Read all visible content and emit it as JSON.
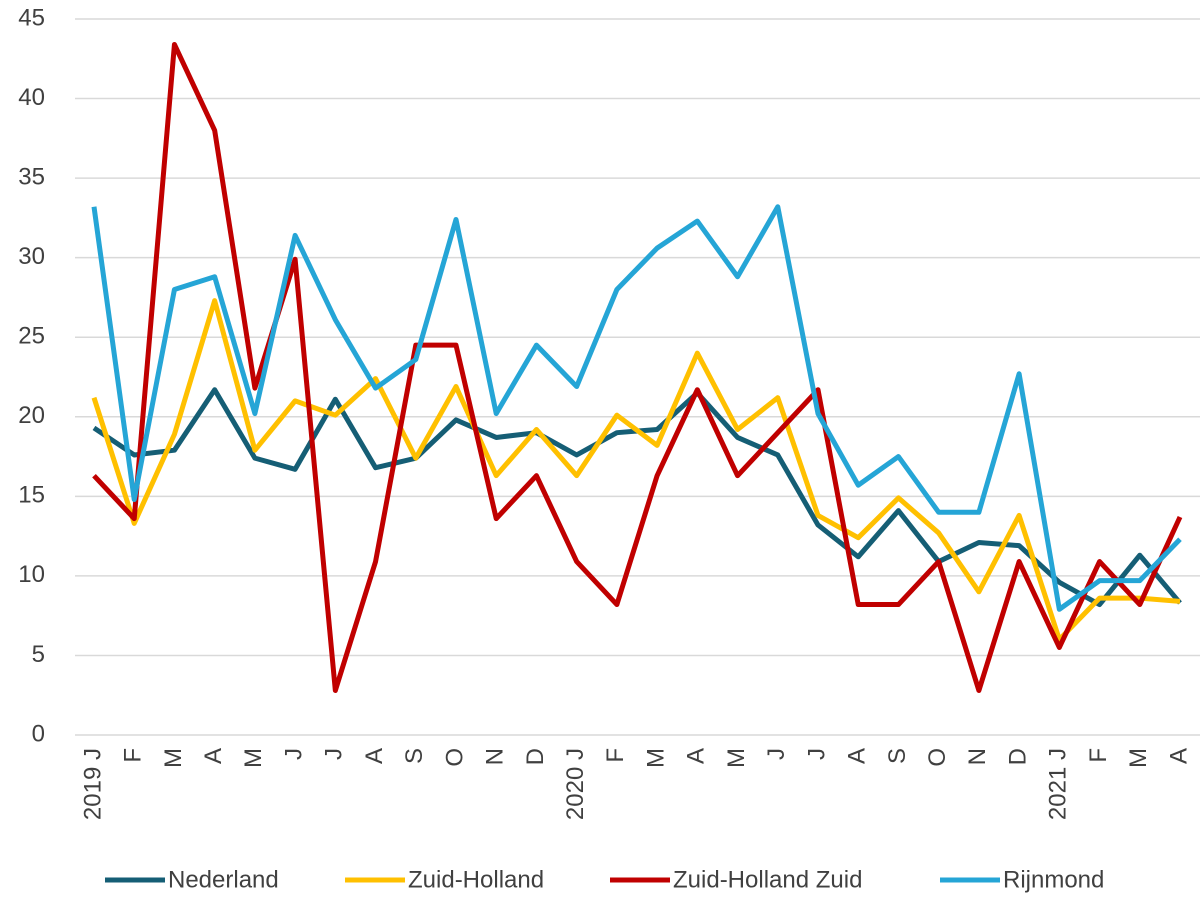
{
  "chart_data": {
    "type": "line",
    "categories": [
      "2019 J",
      "F",
      "M",
      "A",
      "M",
      "J",
      "J",
      "A",
      "S",
      "O",
      "N",
      "D",
      "2020 J",
      "F",
      "M",
      "A",
      "M",
      "J",
      "J",
      "A",
      "S",
      "O",
      "N",
      "D",
      "2021 J",
      "F",
      "M",
      "A"
    ],
    "series": [
      {
        "name": "Nederland",
        "color": "#155e75",
        "values": [
          19.3,
          17.6,
          17.9,
          21.7,
          17.4,
          16.7,
          21.1,
          16.8,
          17.4,
          19.8,
          18.7,
          19.0,
          17.6,
          19.0,
          19.2,
          21.5,
          18.7,
          17.6,
          13.2,
          11.2,
          14.1,
          10.9,
          12.1,
          11.9,
          9.6,
          8.2,
          11.3,
          8.3
        ]
      },
      {
        "name": "Zuid-Holland",
        "color": "#ffc000",
        "values": [
          21.2,
          13.3,
          18.9,
          27.3,
          17.9,
          21.0,
          20.1,
          22.4,
          17.4,
          21.9,
          16.3,
          19.2,
          16.3,
          20.1,
          18.2,
          24.0,
          19.2,
          21.2,
          13.8,
          12.4,
          14.9,
          12.7,
          9.0,
          13.8,
          6.0,
          8.6,
          8.6,
          8.4
        ]
      },
      {
        "name": "Zuid-Holland Zuid",
        "color": "#c00000",
        "values": [
          16.3,
          13.6,
          43.4,
          38.0,
          21.8,
          29.9,
          2.8,
          10.9,
          24.5,
          24.5,
          13.6,
          16.3,
          10.9,
          8.2,
          16.3,
          21.7,
          16.3,
          19.0,
          21.7,
          8.2,
          8.2,
          10.9,
          2.8,
          10.9,
          5.5,
          10.9,
          8.2,
          13.7
        ]
      },
      {
        "name": "Rijnmond",
        "color": "#25a5d6",
        "values": [
          33.2,
          14.8,
          28.0,
          28.8,
          20.2,
          31.4,
          26.1,
          21.8,
          23.6,
          32.4,
          20.2,
          24.5,
          21.9,
          28.0,
          30.6,
          32.3,
          28.8,
          33.2,
          20.2,
          15.7,
          17.5,
          14.0,
          14.0,
          22.7,
          7.9,
          9.7,
          9.7,
          12.3
        ]
      }
    ],
    "ylim": [
      0,
      45
    ],
    "yticks": [
      0,
      5,
      10,
      15,
      20,
      25,
      30,
      35,
      40,
      45
    ],
    "grid": true,
    "legend": "bottom"
  }
}
